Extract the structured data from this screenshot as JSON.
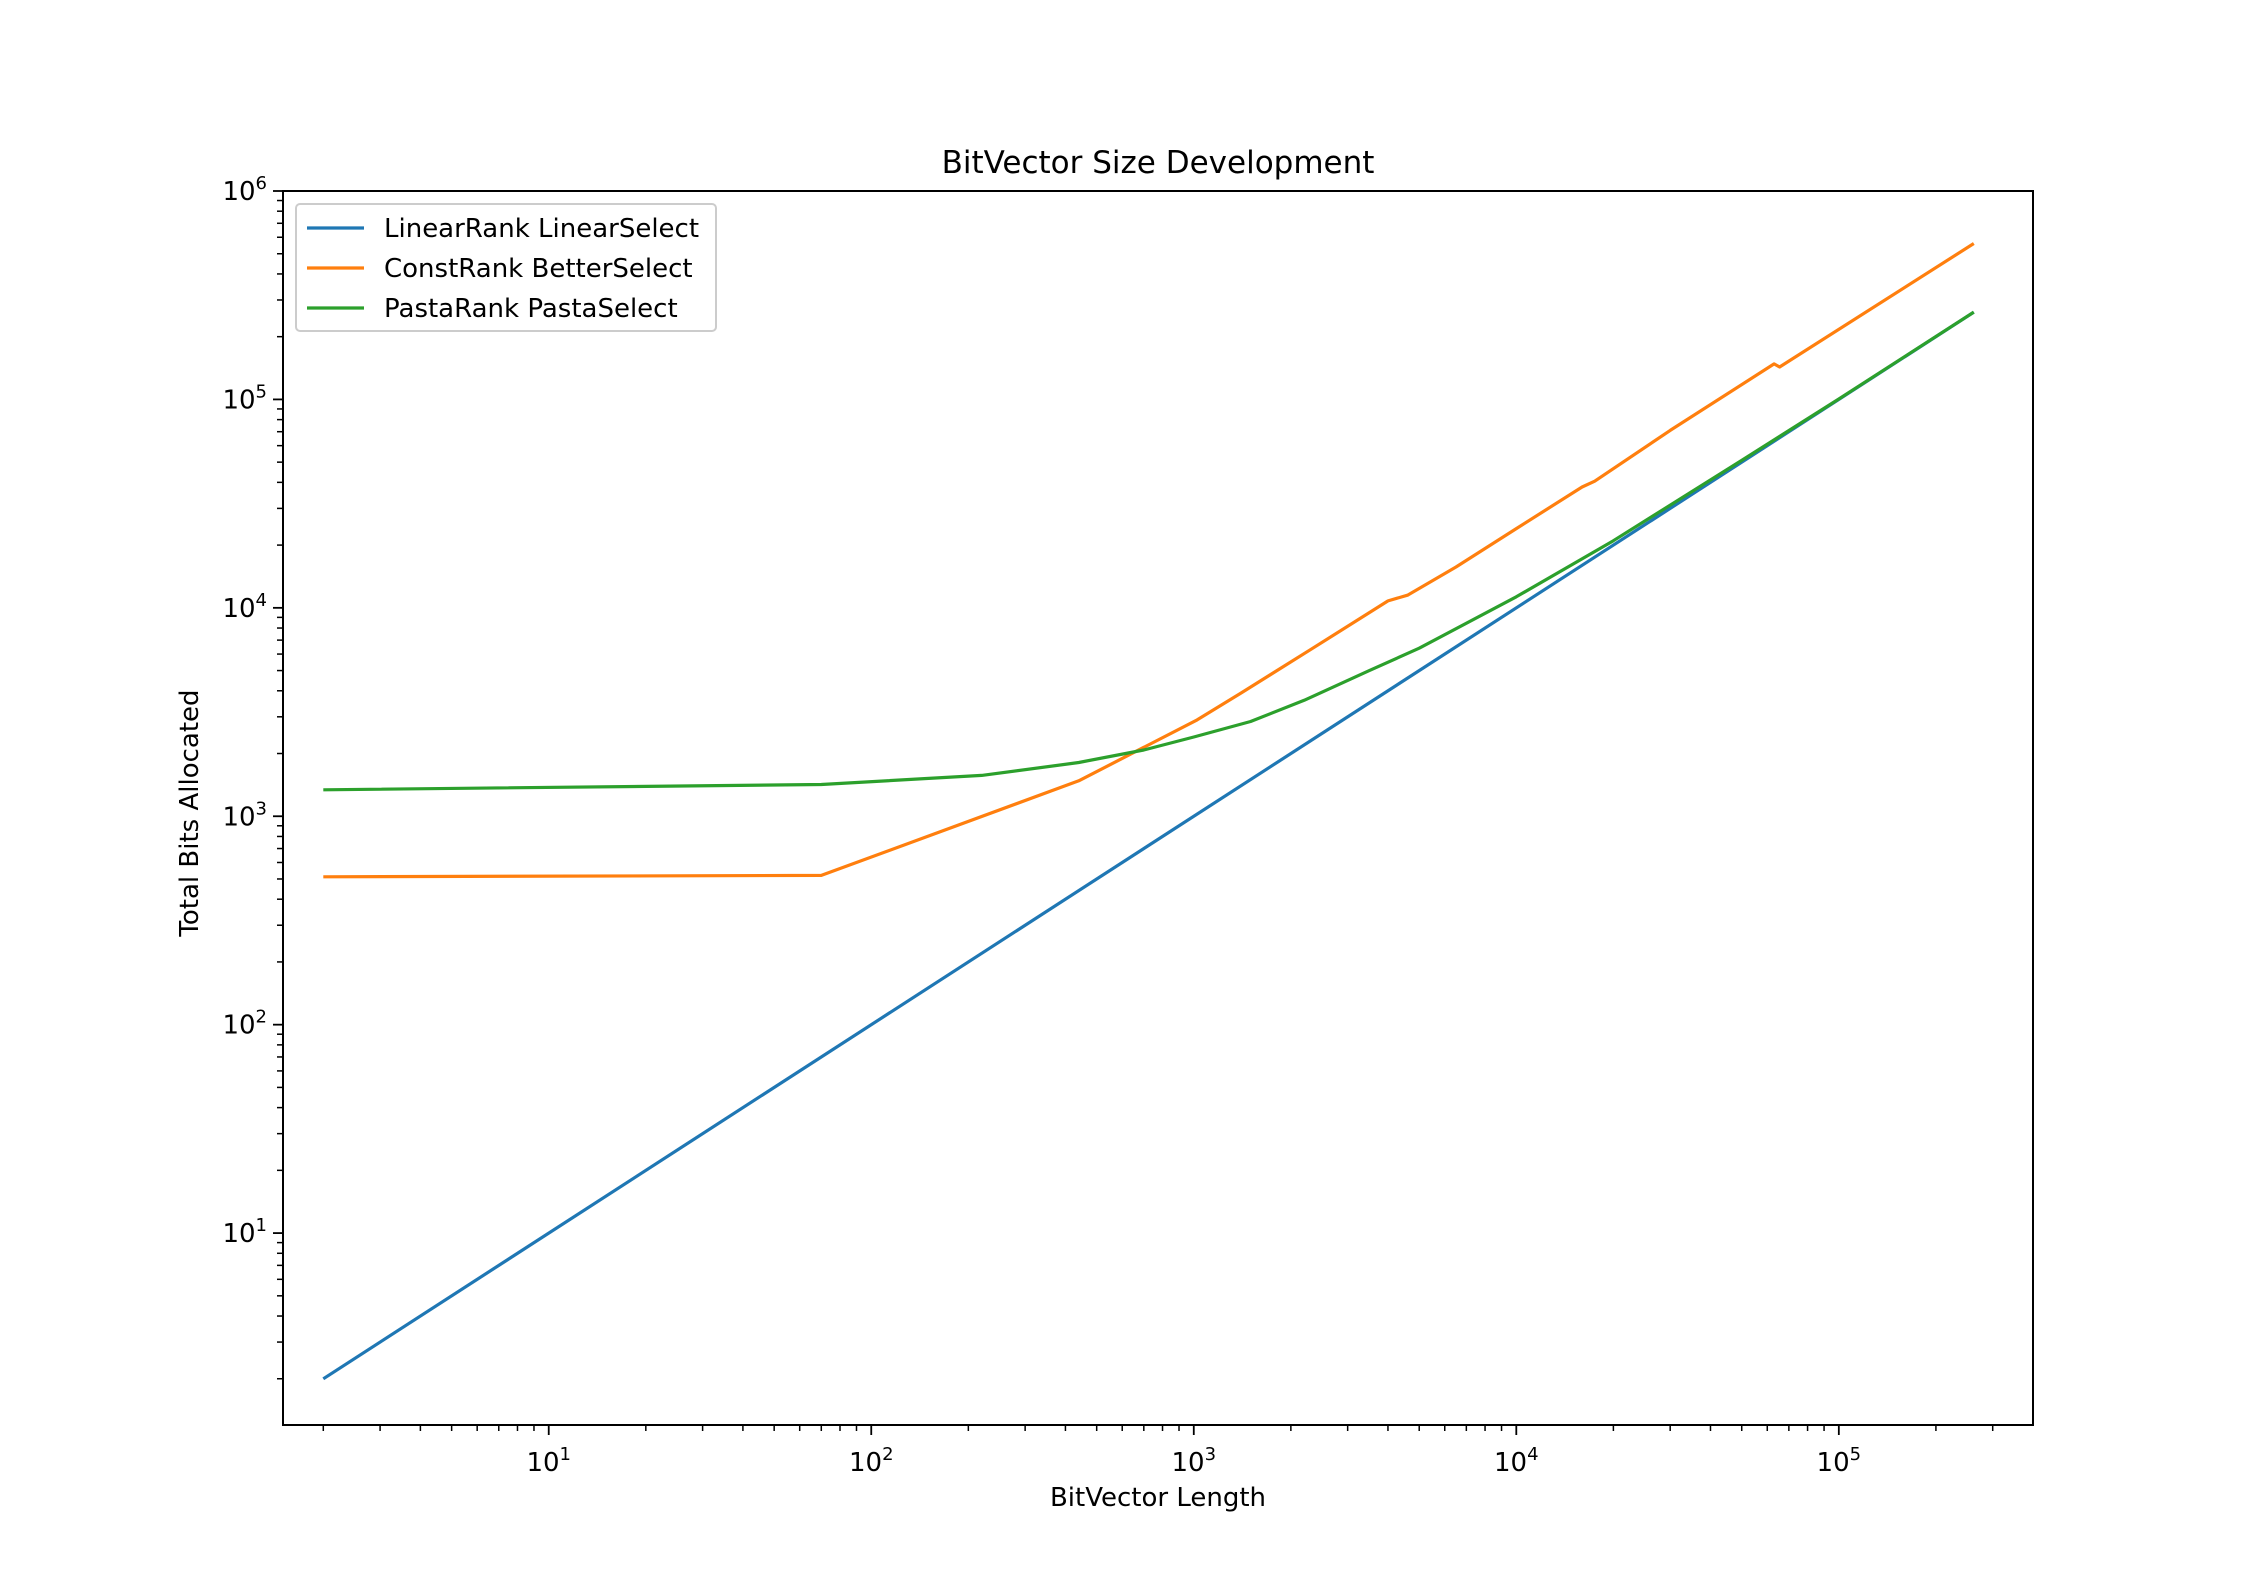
{
  "chart_data": {
    "type": "line",
    "title": "BitVector Size Development",
    "xlabel": "BitVector Length",
    "ylabel": "Total Bits Allocated",
    "xscale": "log",
    "yscale": "log",
    "xlim": [
      1.5,
      400000
    ],
    "ylim": [
      1.2,
      1000000
    ],
    "grid": false,
    "legend_position": "top-left",
    "x_ticks": [
      {
        "value": 10,
        "base": "10",
        "exp": "1"
      },
      {
        "value": 100,
        "base": "10",
        "exp": "2"
      },
      {
        "value": 1000,
        "base": "10",
        "exp": "3"
      },
      {
        "value": 10000,
        "base": "10",
        "exp": "4"
      },
      {
        "value": 100000,
        "base": "10",
        "exp": "5"
      }
    ],
    "y_ticks": [
      {
        "value": 10,
        "base": "10",
        "exp": "1"
      },
      {
        "value": 100,
        "base": "10",
        "exp": "2"
      },
      {
        "value": 1000,
        "base": "10",
        "exp": "3"
      },
      {
        "value": 10000,
        "base": "10",
        "exp": "4"
      },
      {
        "value": 100000,
        "base": "10",
        "exp": "5"
      },
      {
        "value": 1000000,
        "base": "10",
        "exp": "6"
      }
    ],
    "series": [
      {
        "name": "LinearRank LinearSelect",
        "color": "#1f77b4",
        "points": [
          [
            2,
            2
          ],
          [
            262144,
            262144
          ]
        ]
      },
      {
        "name": "ConstRank BetterSelect",
        "color": "#ff7f0e",
        "points": [
          [
            2,
            512
          ],
          [
            70,
            520
          ],
          [
            440,
            1480
          ],
          [
            1024,
            2900
          ],
          [
            1400,
            3900
          ],
          [
            2300,
            6300
          ],
          [
            4000,
            10800
          ],
          [
            4600,
            11500
          ],
          [
            6500,
            15700
          ],
          [
            10000,
            24000
          ],
          [
            16000,
            38000
          ],
          [
            17500,
            40500
          ],
          [
            30000,
            71000
          ],
          [
            63000,
            148000
          ],
          [
            65536,
            143000
          ],
          [
            262144,
            560000
          ]
        ]
      },
      {
        "name": "PastaRank PastaSelect",
        "color": "#2ca02c",
        "points": [
          [
            2,
            1340
          ],
          [
            70,
            1420
          ],
          [
            220,
            1570
          ],
          [
            440,
            1810
          ],
          [
            700,
            2080
          ],
          [
            1000,
            2400
          ],
          [
            1500,
            2850
          ],
          [
            2200,
            3600
          ],
          [
            3500,
            5000
          ],
          [
            5000,
            6400
          ],
          [
            10000,
            11300
          ],
          [
            20000,
            21000
          ],
          [
            50000,
            51000
          ],
          [
            100000,
            100500
          ],
          [
            262144,
            262500
          ]
        ]
      }
    ]
  }
}
